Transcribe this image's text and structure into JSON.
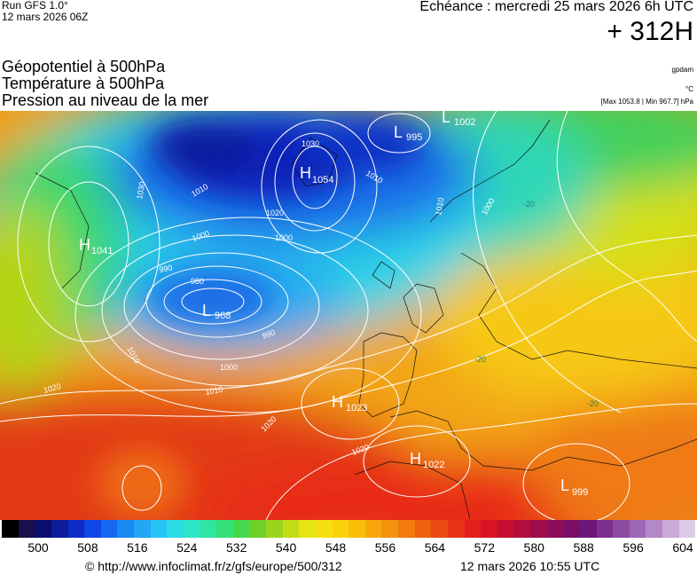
{
  "header": {
    "run_title": "Run GFS 1.0°",
    "run_date": "12 mars 2026 06Z",
    "echeance": "Echéance : mercredi 25 mars 2026 6h UTC",
    "hour": "+ 312H"
  },
  "parameters": [
    "Géopotentiel à 500hPa",
    "Température à 500hPa",
    "Pression au niveau de la mer"
  ],
  "units": {
    "geopotential": "gpdam",
    "temperature": "°C",
    "pressure": "[Max 1053.8 | Min 967.7] hPa"
  },
  "pressure_centers": [
    {
      "type": "L",
      "value": "995"
    },
    {
      "type": "L",
      "value": "1002"
    },
    {
      "type": "H",
      "value": "1054"
    },
    {
      "type": "H",
      "value": "1041"
    },
    {
      "type": "L",
      "value": "968"
    },
    {
      "type": "H",
      "value": "1023"
    },
    {
      "type": "H",
      "value": "1022"
    },
    {
      "type": "L",
      "value": "999"
    }
  ],
  "isobar_labels": [
    "1030",
    "1010",
    "1030",
    "1000",
    "1010",
    "1020",
    "1000",
    "990",
    "980",
    "990",
    "1010",
    "1000",
    "1010",
    "1020",
    "1020",
    "1020",
    "1010",
    "1000"
  ],
  "temperature_labels": [
    "-20",
    "-20",
    "-20"
  ],
  "colorbar": {
    "colors": [
      "#000000",
      "#1a0f4a",
      "#0a0f6e",
      "#0c1b99",
      "#0c2cc8",
      "#1048e6",
      "#1469f0",
      "#1a8af4",
      "#22a7f7",
      "#27c4f5",
      "#2adbe8",
      "#2de6c8",
      "#2ee6a2",
      "#34e077",
      "#46d84c",
      "#6fd128",
      "#9bd41c",
      "#c2dd18",
      "#e6e614",
      "#f5e10f",
      "#fbd20b",
      "#fbbf0a",
      "#f8a80a",
      "#f5920c",
      "#f27a0f",
      "#ee6212",
      "#eb4a14",
      "#e83418",
      "#e3201c",
      "#d81424",
      "#c60f30",
      "#b30d3e",
      "#a00c4c",
      "#8c0d5a",
      "#7a0f68",
      "#6e1678",
      "#7c2f8e",
      "#8c4aa3",
      "#9e67b6",
      "#b388c8",
      "#c9aad9",
      "#dccbe6"
    ],
    "ticks": [
      "500",
      "508",
      "516",
      "524",
      "532",
      "540",
      "548",
      "556",
      "564",
      "572",
      "580",
      "588",
      "596",
      "604"
    ]
  },
  "footer": {
    "copyright": "© http://www.infoclimat.fr/z/gfs/europe/500/312",
    "stamp": "12 mars 2026 10:55 UTC"
  }
}
